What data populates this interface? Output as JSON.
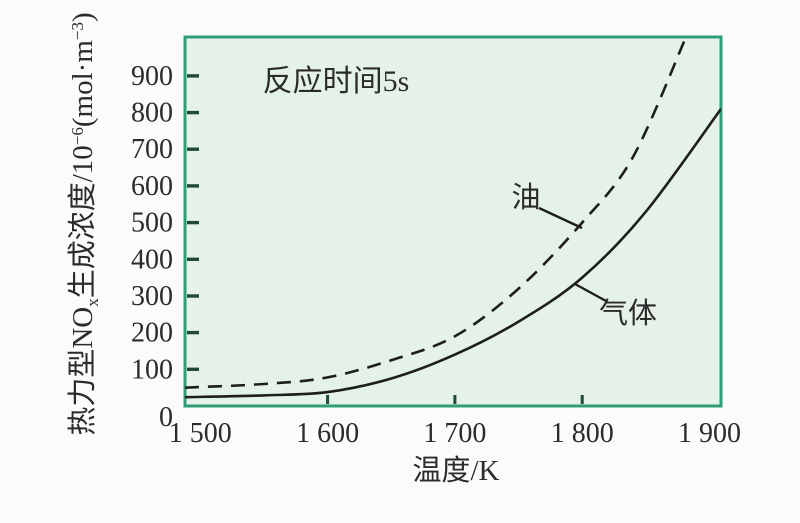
{
  "colors": {
    "page_bg": "#fbfbfb",
    "plot_bg": "#e5f2e7",
    "plot_border": "#2f9e78",
    "tick_mark": "#1f4a38",
    "curve": "#1e1e1e",
    "text": "#2b2b2b"
  },
  "chart_data": {
    "type": "line",
    "annotation": "反应时间5s",
    "xlabel": "温度/K",
    "ylabel": "热力型NOx生成浓度/10−6(mol·m−3)",
    "ylabel_parts": {
      "p1": "热力型NO",
      "sub1": "x",
      "p2": "生成浓度/10",
      "sup1": "−6",
      "p3": "(mol·m",
      "sup2": "−3",
      "p4": ")"
    },
    "xlim": [
      1488,
      1909
    ],
    "ylim": [
      0,
      1006
    ],
    "grid": false,
    "legend": "inline-callouts",
    "x_tick_marks": [
      1600,
      1700,
      1800
    ],
    "x_tick_labels": [
      {
        "value": 1500,
        "label": "1 500"
      },
      {
        "value": 1600,
        "label": "1 600"
      },
      {
        "value": 1700,
        "label": "1 700"
      },
      {
        "value": 1800,
        "label": "1 800"
      },
      {
        "value": 1900,
        "label": "1 900"
      }
    ],
    "y_tick_marks": [
      100,
      200,
      300,
      400,
      500,
      600,
      700,
      800,
      900
    ],
    "y_tick_labels": [
      {
        "value": 0,
        "label": "0"
      },
      {
        "value": 100,
        "label": "100"
      },
      {
        "value": 200,
        "label": "200"
      },
      {
        "value": 300,
        "label": "300"
      },
      {
        "value": 400,
        "label": "400"
      },
      {
        "value": 500,
        "label": "500"
      },
      {
        "value": 600,
        "label": "600"
      },
      {
        "value": 700,
        "label": "700"
      },
      {
        "value": 800,
        "label": "800"
      },
      {
        "value": 900,
        "label": "900"
      }
    ],
    "series": [
      {
        "name": "气体",
        "style": "solid",
        "x": [
          1488,
          1550,
          1600,
          1650,
          1700,
          1750,
          1800,
          1850,
          1909
        ],
        "y": [
          24,
          29,
          38,
          75,
          140,
          230,
          350,
          530,
          810
        ]
      },
      {
        "name": "油",
        "style": "dashed",
        "x": [
          1488,
          1550,
          1600,
          1650,
          1700,
          1750,
          1800,
          1840,
          1882
        ],
        "y": [
          50,
          60,
          78,
          125,
          190,
          320,
          500,
          680,
          1010
        ]
      }
    ],
    "series_label_oil": "油",
    "series_label_gas": "气体"
  }
}
